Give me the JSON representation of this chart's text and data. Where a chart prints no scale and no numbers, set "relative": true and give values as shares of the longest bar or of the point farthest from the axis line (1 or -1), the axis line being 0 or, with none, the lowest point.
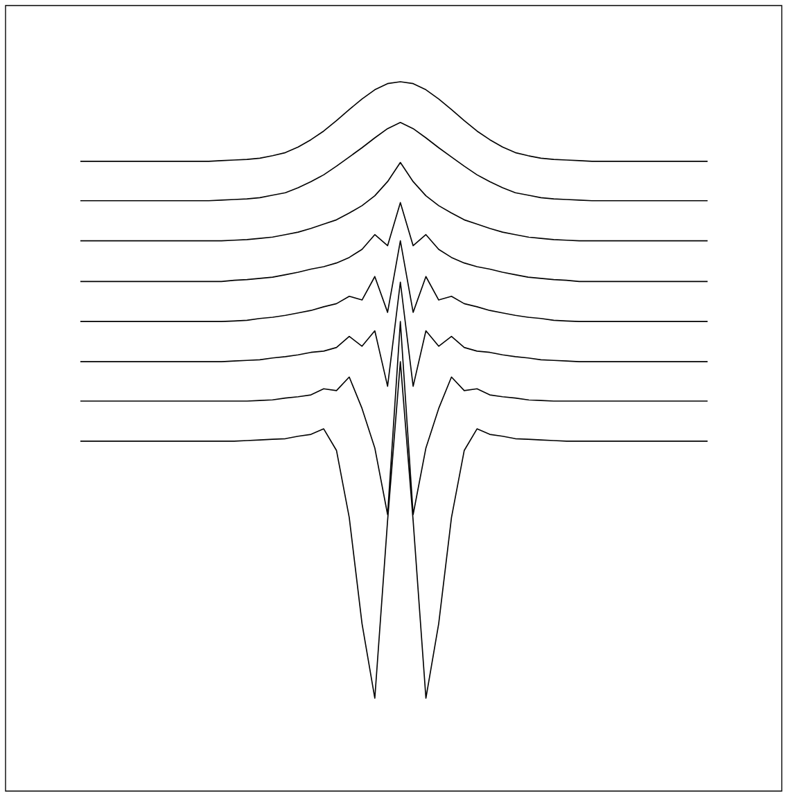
{
  "chart_data": {
    "type": "line",
    "relative": true,
    "line_style": "solid",
    "marker": "none",
    "categories": [
      null,
      null,
      null,
      null,
      null,
      null,
      null,
      null,
      null,
      null,
      null,
      null,
      null,
      null,
      null,
      null,
      null,
      null,
      null,
      null,
      null,
      null,
      null,
      null,
      null,
      null,
      null,
      null,
      null,
      null,
      null,
      null,
      null,
      null,
      null,
      null,
      null,
      null,
      null,
      null,
      null,
      null,
      null,
      null,
      null,
      null,
      null,
      null,
      null,
      null
    ],
    "series": [
      {
        "color": "#000000",
        "values": [
          0.871,
          0.871,
          0.871,
          0.871,
          0.871,
          0.871,
          0.871,
          0.871,
          0.871,
          0.871,
          0.871,
          0.872,
          0.873,
          0.874,
          0.876,
          0.88,
          0.885,
          0.894,
          0.906,
          0.92,
          0.937,
          0.955,
          0.972,
          0.987,
          0.997,
          1.0,
          0.997,
          0.987,
          0.972,
          0.955,
          0.937,
          0.92,
          0.906,
          0.894,
          0.885,
          0.88,
          0.876,
          0.874,
          0.873,
          0.872,
          0.871,
          0.871,
          0.871,
          0.871,
          0.871,
          0.871,
          0.871,
          0.871,
          0.871,
          0.871
        ]
      },
      {
        "color": "#000000",
        "values": [
          0.807,
          0.807,
          0.807,
          0.807,
          0.807,
          0.807,
          0.807,
          0.807,
          0.807,
          0.807,
          0.807,
          0.808,
          0.809,
          0.81,
          0.812,
          0.816,
          0.82,
          0.828,
          0.838,
          0.849,
          0.863,
          0.878,
          0.893,
          0.909,
          0.924,
          0.934,
          0.924,
          0.909,
          0.893,
          0.878,
          0.863,
          0.849,
          0.838,
          0.828,
          0.82,
          0.816,
          0.812,
          0.81,
          0.809,
          0.808,
          0.807,
          0.807,
          0.807,
          0.807,
          0.807,
          0.807,
          0.807,
          0.807,
          0.807,
          0.807
        ]
      },
      {
        "color": "#000000",
        "values": [
          0.742,
          0.742,
          0.742,
          0.742,
          0.742,
          0.742,
          0.742,
          0.742,
          0.742,
          0.742,
          0.742,
          0.742,
          0.743,
          0.744,
          0.746,
          0.748,
          0.752,
          0.756,
          0.762,
          0.769,
          0.776,
          0.787,
          0.799,
          0.815,
          0.838,
          0.869,
          0.838,
          0.815,
          0.799,
          0.787,
          0.776,
          0.769,
          0.762,
          0.756,
          0.752,
          0.748,
          0.746,
          0.744,
          0.743,
          0.742,
          0.742,
          0.742,
          0.742,
          0.742,
          0.742,
          0.742,
          0.742,
          0.742,
          0.742,
          0.742
        ]
      },
      {
        "color": "#000000",
        "values": [
          0.676,
          0.676,
          0.676,
          0.676,
          0.676,
          0.676,
          0.676,
          0.676,
          0.676,
          0.676,
          0.676,
          0.676,
          0.678,
          0.679,
          0.681,
          0.683,
          0.687,
          0.691,
          0.696,
          0.7,
          0.706,
          0.715,
          0.728,
          0.752,
          0.734,
          0.804,
          0.734,
          0.752,
          0.728,
          0.715,
          0.706,
          0.7,
          0.696,
          0.691,
          0.687,
          0.683,
          0.681,
          0.679,
          0.678,
          0.676,
          0.676,
          0.676,
          0.676,
          0.676,
          0.676,
          0.676,
          0.676,
          0.676,
          0.676,
          0.676
        ]
      },
      {
        "color": "#000000",
        "values": [
          0.611,
          0.611,
          0.611,
          0.611,
          0.611,
          0.611,
          0.611,
          0.611,
          0.611,
          0.611,
          0.611,
          0.611,
          0.612,
          0.613,
          0.616,
          0.618,
          0.621,
          0.625,
          0.629,
          0.635,
          0.64,
          0.652,
          0.646,
          0.684,
          0.626,
          0.742,
          0.626,
          0.684,
          0.646,
          0.652,
          0.64,
          0.635,
          0.629,
          0.625,
          0.621,
          0.618,
          0.616,
          0.613,
          0.612,
          0.611,
          0.611,
          0.611,
          0.611,
          0.611,
          0.611,
          0.611,
          0.611,
          0.611,
          0.611,
          0.611
        ]
      },
      {
        "color": "#000000",
        "values": [
          0.546,
          0.546,
          0.546,
          0.546,
          0.546,
          0.546,
          0.546,
          0.546,
          0.546,
          0.546,
          0.546,
          0.546,
          0.547,
          0.548,
          0.549,
          0.552,
          0.554,
          0.557,
          0.561,
          0.563,
          0.569,
          0.587,
          0.571,
          0.596,
          0.506,
          0.675,
          0.506,
          0.596,
          0.571,
          0.587,
          0.569,
          0.563,
          0.561,
          0.557,
          0.554,
          0.552,
          0.549,
          0.548,
          0.547,
          0.546,
          0.546,
          0.546,
          0.546,
          0.546,
          0.546,
          0.546,
          0.546,
          0.546,
          0.546,
          0.546
        ]
      },
      {
        "color": "#000000",
        "values": [
          0.482,
          0.482,
          0.482,
          0.482,
          0.482,
          0.482,
          0.482,
          0.482,
          0.482,
          0.482,
          0.482,
          0.482,
          0.482,
          0.482,
          0.483,
          0.484,
          0.487,
          0.489,
          0.492,
          0.502,
          0.499,
          0.521,
          0.47,
          0.406,
          0.298,
          0.611,
          0.298,
          0.406,
          0.47,
          0.521,
          0.499,
          0.502,
          0.492,
          0.489,
          0.487,
          0.484,
          0.483,
          0.482,
          0.482,
          0.482,
          0.482,
          0.482,
          0.482,
          0.482,
          0.482,
          0.482,
          0.482,
          0.482,
          0.482,
          0.482
        ]
      },
      {
        "color": "#000000",
        "values": [
          0.417,
          0.417,
          0.417,
          0.417,
          0.417,
          0.417,
          0.417,
          0.417,
          0.417,
          0.417,
          0.417,
          0.417,
          0.417,
          0.418,
          0.419,
          0.42,
          0.421,
          0.425,
          0.428,
          0.437,
          0.402,
          0.293,
          0.121,
          0.0,
          0.288,
          0.546,
          0.288,
          0.0,
          0.121,
          0.293,
          0.402,
          0.437,
          0.428,
          0.425,
          0.421,
          0.42,
          0.419,
          0.418,
          0.417,
          0.417,
          0.417,
          0.417,
          0.417,
          0.417,
          0.417,
          0.417,
          0.417,
          0.417,
          0.417,
          0.417
        ]
      }
    ]
  }
}
